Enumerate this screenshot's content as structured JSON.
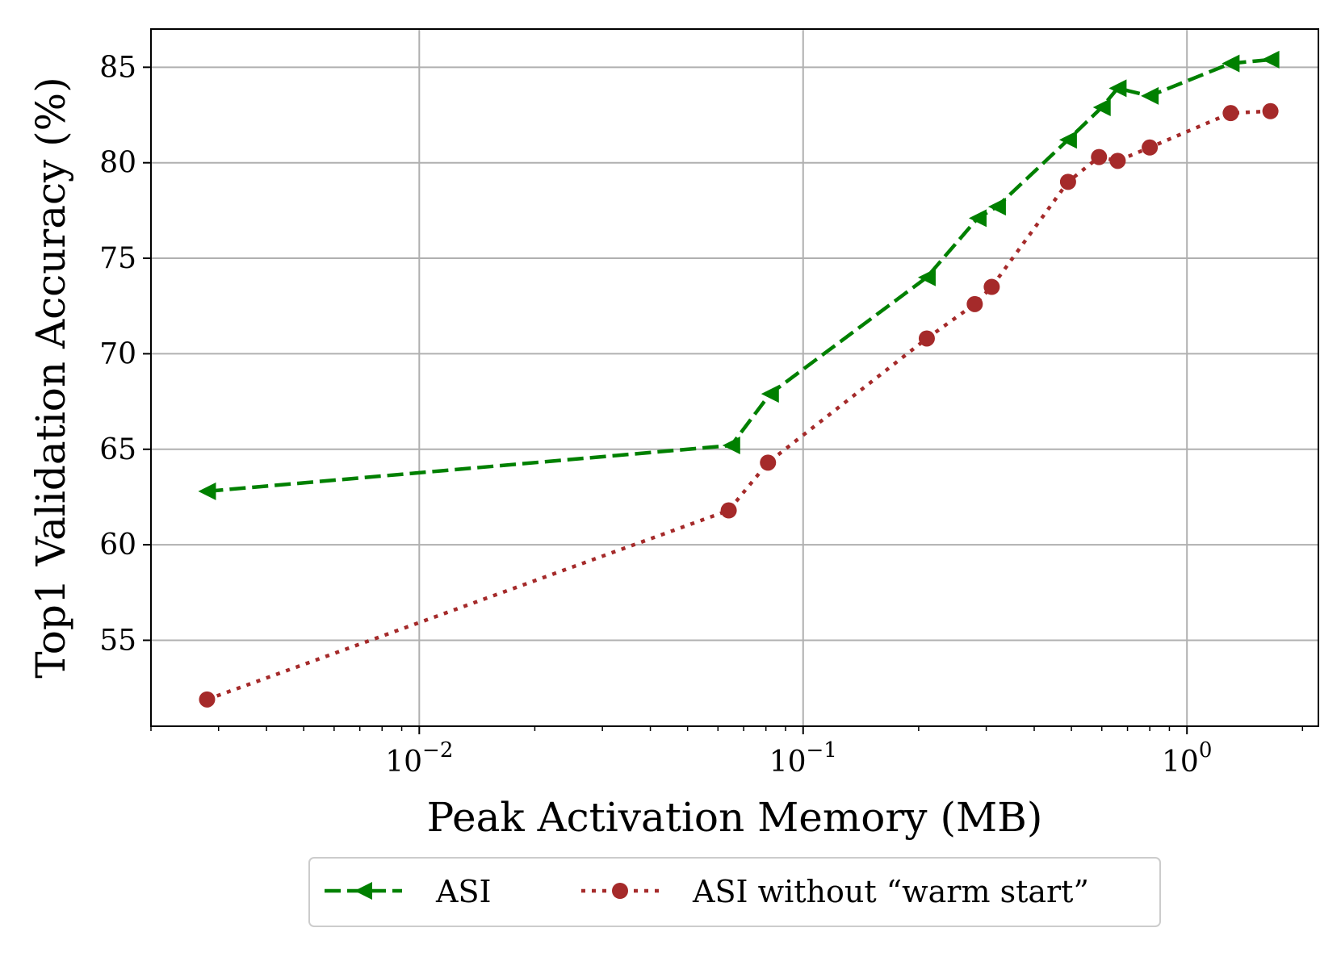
{
  "chart_data": {
    "type": "line",
    "xlabel": "Peak Activation Memory (MB)",
    "ylabel": "Top1 Validation Accuracy (%)",
    "x_scale": "log",
    "xlim": [
      0.002,
      2.2
    ],
    "ylim": [
      50.5,
      87.0
    ],
    "x_ticks": [
      {
        "value": 0.01,
        "base": "10",
        "exp": "−2"
      },
      {
        "value": 0.1,
        "base": "10",
        "exp": "−1"
      },
      {
        "value": 1,
        "base": "10",
        "exp": "0"
      }
    ],
    "y_ticks": [
      55,
      60,
      65,
      70,
      75,
      80,
      85
    ],
    "grid": true,
    "legend_position": "bottom-center, outside plot",
    "series": [
      {
        "name": "ASI",
        "color": "#008000",
        "line_style": "dashed",
        "marker": "triangle-left",
        "x": [
          0.0028,
          0.065,
          0.082,
          0.21,
          0.285,
          0.32,
          0.49,
          0.6,
          0.66,
          0.8,
          1.3,
          1.65
        ],
        "y": [
          62.8,
          65.2,
          67.9,
          74.0,
          77.1,
          77.7,
          81.2,
          82.9,
          83.9,
          83.5,
          85.2,
          85.4
        ]
      },
      {
        "name": "ASI without “warm start”",
        "color": "#a52a2a",
        "line_style": "dotted",
        "marker": "circle",
        "x": [
          0.0028,
          0.064,
          0.081,
          0.21,
          0.28,
          0.31,
          0.49,
          0.59,
          0.66,
          0.8,
          1.3,
          1.65
        ],
        "y": [
          51.9,
          61.8,
          64.3,
          70.8,
          72.6,
          73.5,
          79.0,
          80.3,
          80.1,
          80.8,
          82.6,
          82.7
        ]
      }
    ]
  }
}
